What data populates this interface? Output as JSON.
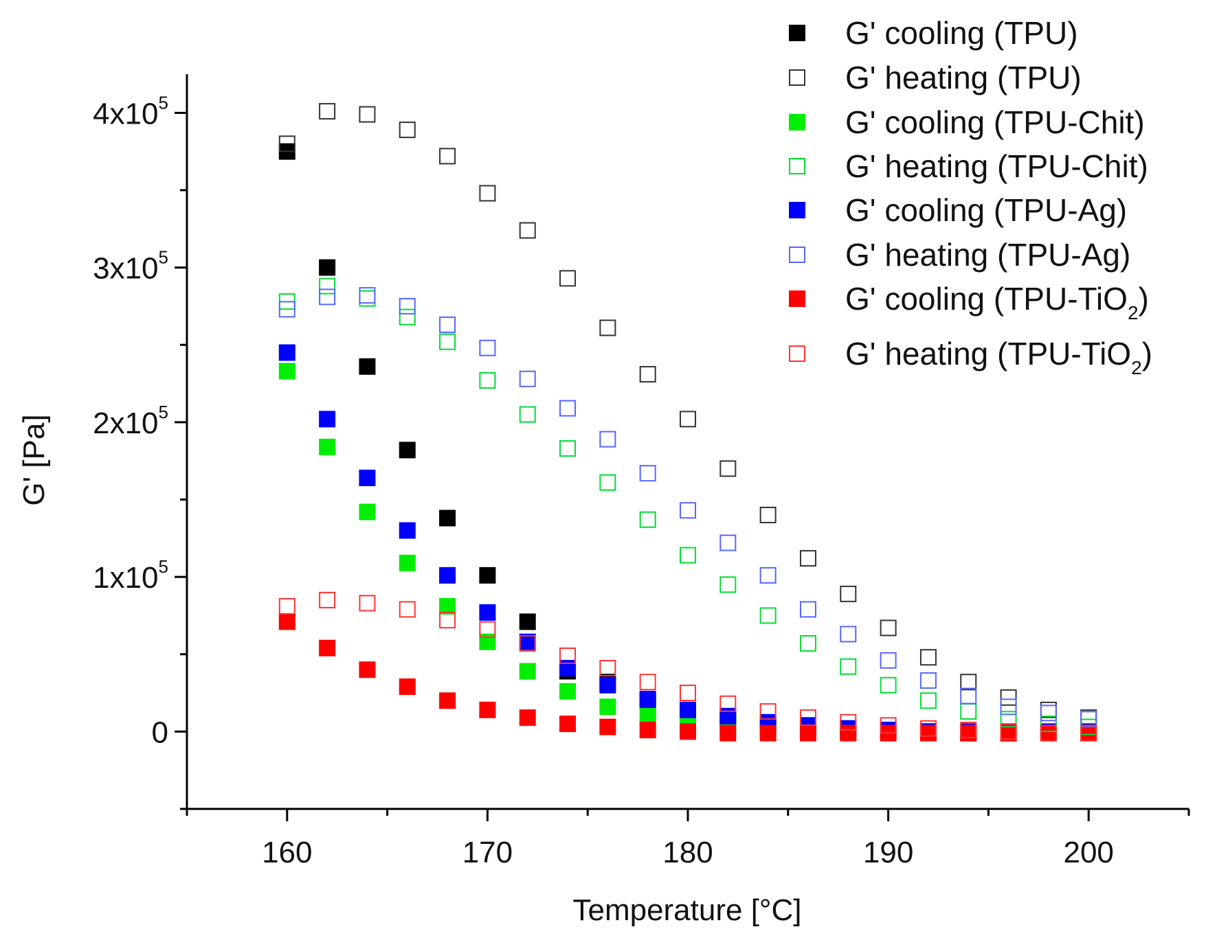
{
  "chart_data": {
    "type": "scatter",
    "title": "",
    "xlabel": "Temperature [°C]",
    "ylabel": "G' [Pa]",
    "xlim": [
      155,
      205
    ],
    "ylim": [
      -50000,
      425000
    ],
    "x_major_ticks": [
      160,
      170,
      180,
      190,
      200
    ],
    "x_minor_ticks": [
      155,
      165,
      175,
      185,
      195,
      205
    ],
    "y_major_ticks": [
      0,
      100000,
      200000,
      300000,
      400000
    ],
    "y_minor_ticks": [
      -50000,
      50000,
      150000,
      250000,
      350000
    ],
    "y_tick_labels": [
      {
        "value": 0,
        "mantissa": "0",
        "sup": ""
      },
      {
        "value": 100000,
        "mantissa": "1x10",
        "sup": "5"
      },
      {
        "value": 200000,
        "mantissa": "2x10",
        "sup": "5"
      },
      {
        "value": 300000,
        "mantissa": "3x10",
        "sup": "5"
      },
      {
        "value": 400000,
        "mantissa": "4x10",
        "sup": "5"
      }
    ],
    "legend_position": "top-right",
    "x": [
      160,
      162,
      164,
      166,
      168,
      170,
      172,
      174,
      176,
      178,
      180,
      182,
      184,
      186,
      188,
      190,
      192,
      194,
      196,
      198,
      200
    ],
    "series": [
      {
        "name": "G' cooling (TPU)",
        "label": "G' cooling (TPU",
        "sub": "",
        "close": ")",
        "color": "#000000",
        "filled": true,
        "values": [
          375000,
          300000,
          236000,
          182000,
          138000,
          101000,
          71000,
          39000,
          32000,
          20000,
          12000,
          8000,
          5000,
          3000,
          2000,
          1000,
          0,
          -1000,
          -1000,
          -1000,
          -1000
        ]
      },
      {
        "name": "G' heating (TPU)",
        "label": "G' heating (TPU",
        "sub": "",
        "close": ")",
        "color": "#333333",
        "filled": false,
        "values": [
          380000,
          401000,
          399000,
          389000,
          372000,
          348000,
          324000,
          293000,
          261000,
          231000,
          202000,
          170000,
          140000,
          112000,
          89000,
          67000,
          48000,
          32000,
          22000,
          14000,
          9000
        ]
      },
      {
        "name": "G' cooling (TPU-Chit)",
        "label": "G' cooling (TPU-Chit",
        "sub": "",
        "close": ")",
        "color": "#00ee00",
        "filled": true,
        "values": [
          233000,
          184000,
          142000,
          109000,
          81000,
          58000,
          39000,
          26000,
          16000,
          10000,
          6000,
          4000,
          2000,
          1000,
          0,
          -1000,
          -1000,
          -1000,
          -1000,
          -1000,
          -1000
        ]
      },
      {
        "name": "G' heating (TPU-Chit)",
        "label": "G' heating (TPU-Chit",
        "sub": "",
        "close": ")",
        "color": "#00dd33",
        "filled": false,
        "values": [
          278000,
          288000,
          280000,
          268000,
          252000,
          227000,
          205000,
          183000,
          161000,
          137000,
          114000,
          95000,
          75000,
          57000,
          42000,
          30000,
          20000,
          13000,
          8000,
          5000,
          3000
        ]
      },
      {
        "name": "G' cooling (TPU-Ag)",
        "label": "G' cooling (TPU-Ag",
        "sub": "",
        "close": ")",
        "color": "#0000ff",
        "filled": true,
        "values": [
          245000,
          202000,
          164000,
          130000,
          101000,
          77000,
          58000,
          41000,
          30000,
          21000,
          14000,
          10000,
          6000,
          4000,
          2000,
          1000,
          0,
          0,
          0,
          0,
          0
        ]
      },
      {
        "name": "G' heating (TPU-Ag)",
        "label": "G' heating (TPU-Ag",
        "sub": "",
        "close": ")",
        "color": "#5566ff",
        "filled": false,
        "values": [
          273000,
          281000,
          282000,
          275000,
          263000,
          248000,
          228000,
          209000,
          189000,
          167000,
          143000,
          122000,
          101000,
          79000,
          63000,
          46000,
          33000,
          23000,
          16000,
          12000,
          8000
        ]
      },
      {
        "name": "G' cooling (TPU-TiO2)",
        "label": "G' cooling (TPU-TiO",
        "sub": "2",
        "close": ")",
        "color": "#ff0000",
        "filled": true,
        "values": [
          71000,
          54000,
          40000,
          29000,
          20000,
          14000,
          9000,
          5000,
          3000,
          1000,
          0,
          -1000,
          -1000,
          -1000,
          -1000,
          -1000,
          -1000,
          -1000,
          -1000,
          -1000,
          -1000
        ]
      },
      {
        "name": "G' heating (TPU-TiO2)",
        "label": "G' heating (TPU-TiO",
        "sub": "2",
        "close": ")",
        "color": "#ff3333",
        "filled": false,
        "values": [
          81000,
          85000,
          83000,
          79000,
          72000,
          66000,
          57000,
          49000,
          41000,
          32000,
          25000,
          18000,
          13000,
          9000,
          6000,
          4000,
          2000,
          1000,
          0,
          -1000,
          -1000
        ]
      }
    ]
  }
}
